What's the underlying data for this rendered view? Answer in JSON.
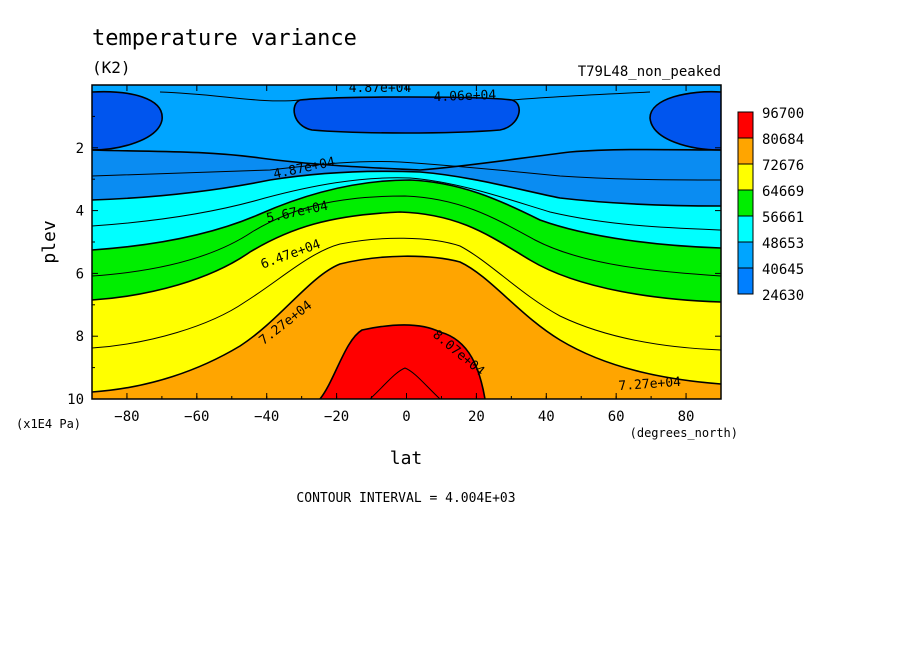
{
  "chart_data": {
    "type": "heatmap",
    "title": "temperature variance",
    "units": "(K2)",
    "run_label": "T79L48_non_peaked",
    "xlabel": "lat",
    "x_units": "(degrees_north)",
    "ylabel": "plev",
    "y_units": "(x1E4 Pa)",
    "xlim": [
      -90,
      90
    ],
    "ylim": [
      0,
      10
    ],
    "y_inverted": true,
    "x_ticks": [
      "-80",
      "-60",
      "-40",
      "-20",
      "0",
      "20",
      "40",
      "60",
      "80"
    ],
    "y_ticks": [
      "2",
      "4",
      "6",
      "8",
      "10"
    ],
    "contour_interval_label": "CONTOUR INTERVAL = 4.004E+03",
    "colorbar": {
      "levels": [
        "96700",
        "80684",
        "72676",
        "64669",
        "56661",
        "48653",
        "40645",
        "24630"
      ],
      "colors": [
        "#ff0000",
        "#ffa500",
        "#ffff00",
        "#00ee00",
        "#00ffff",
        "#00a5ff",
        "#007fff",
        "#0055ee"
      ]
    },
    "contour_labels": [
      "4.87e+04",
      "4.06e+04",
      "4.87e+04",
      "5.67e+04",
      "6.47e+04",
      "7.27e+04",
      "8.07e+04",
      "7.27e+04"
    ]
  }
}
